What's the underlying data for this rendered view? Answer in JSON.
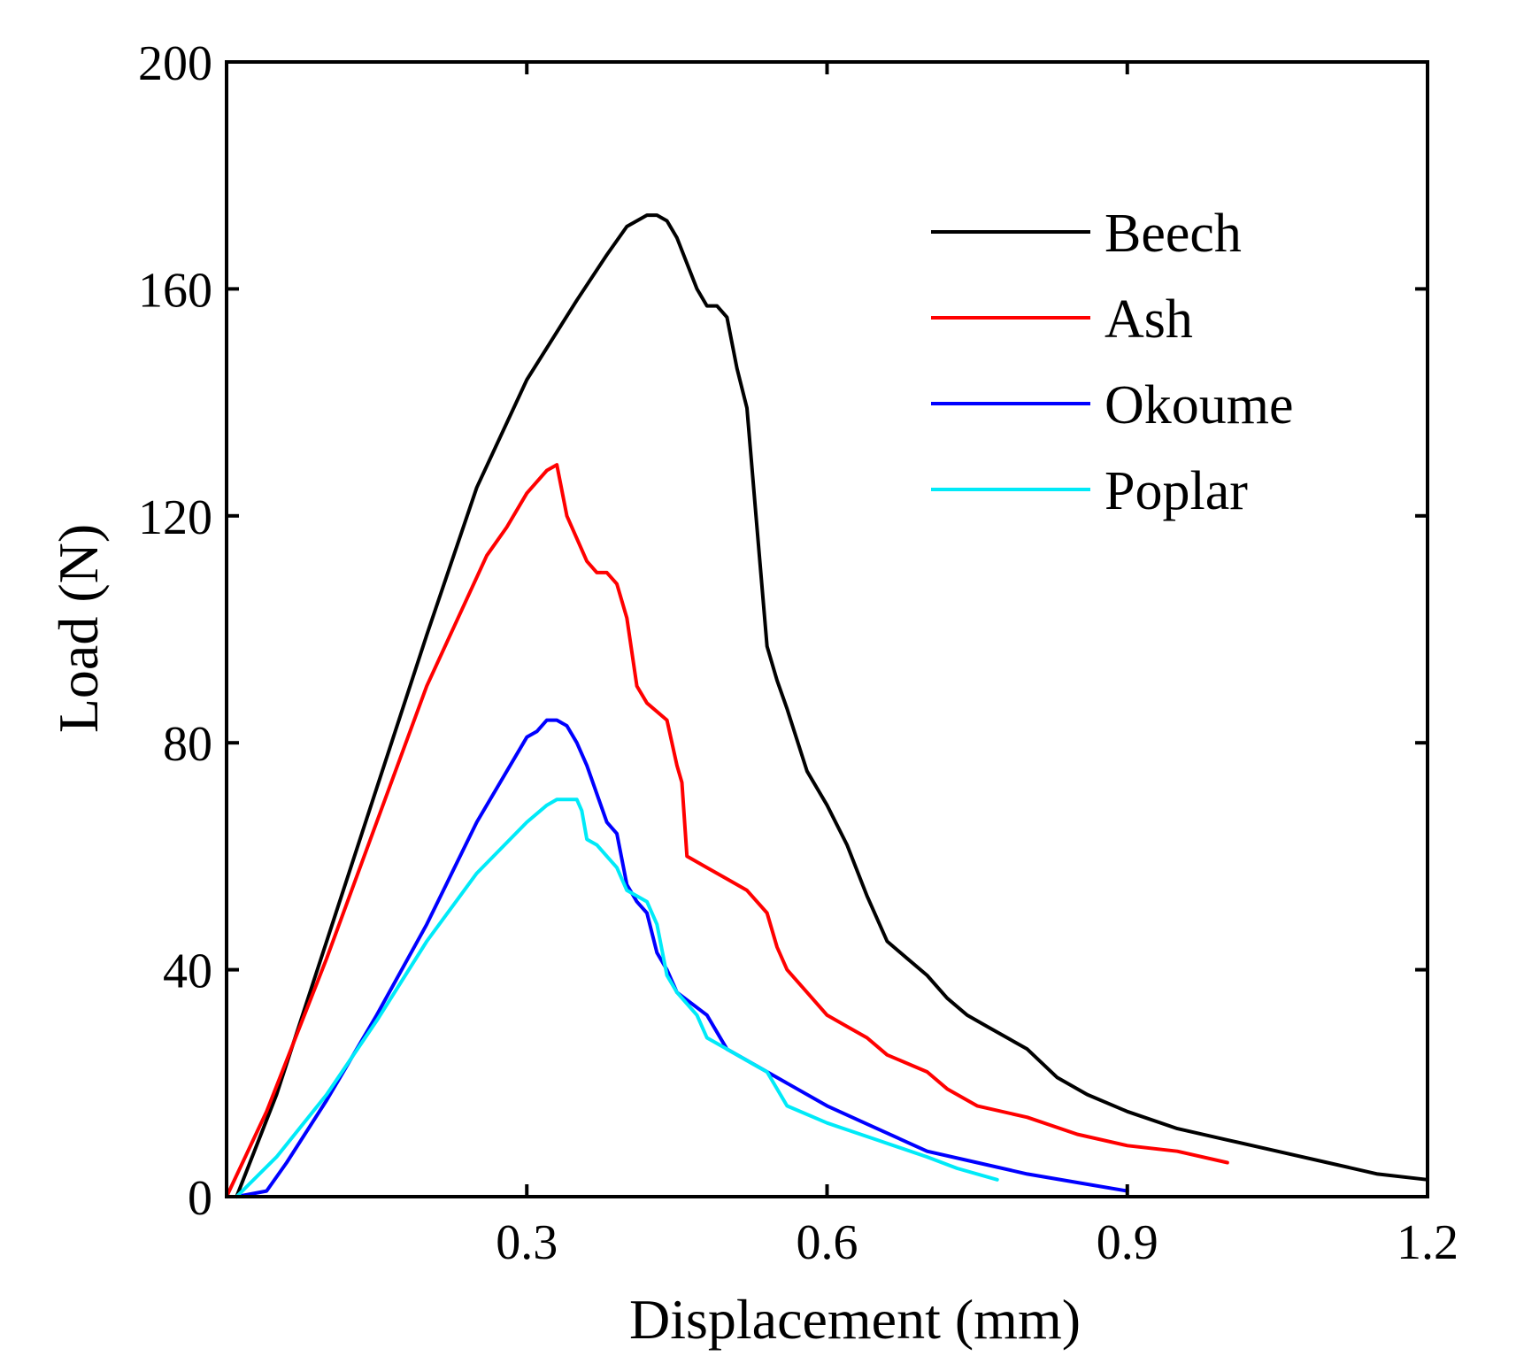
{
  "chart_data": {
    "type": "line",
    "title": "",
    "xlabel": "Displacement (mm)",
    "ylabel": "Load (N)",
    "xlim": [
      0,
      1.2
    ],
    "ylim": [
      0,
      200
    ],
    "xticks": [
      0.3,
      0.6,
      0.9,
      1.2
    ],
    "xtick_labels": [
      "0.3",
      "0.6",
      "0.9",
      "1.2"
    ],
    "yticks": [
      0,
      40,
      80,
      120,
      160,
      200
    ],
    "ytick_labels": [
      "0",
      "40",
      "80",
      "120",
      "160",
      "200"
    ],
    "grid": false,
    "legend_position": "top-right",
    "series": [
      {
        "name": "Beech",
        "color": "#000000",
        "x": [
          0.01,
          0.05,
          0.1,
          0.15,
          0.2,
          0.25,
          0.3,
          0.35,
          0.38,
          0.4,
          0.42,
          0.43,
          0.44,
          0.45,
          0.47,
          0.48,
          0.49,
          0.5,
          0.51,
          0.52,
          0.53,
          0.54,
          0.55,
          0.56,
          0.58,
          0.6,
          0.62,
          0.64,
          0.66,
          0.68,
          0.7,
          0.72,
          0.74,
          0.76,
          0.78,
          0.8,
          0.83,
          0.86,
          0.9,
          0.95,
          1.0,
          1.05,
          1.1,
          1.15,
          1.2
        ],
        "y": [
          0,
          18,
          45,
          72,
          99,
          125,
          144,
          158,
          166,
          171,
          173,
          173,
          172,
          169,
          160,
          157,
          157,
          155,
          146,
          139,
          118,
          97,
          91,
          86,
          75,
          69,
          62,
          53,
          45,
          42,
          39,
          35,
          32,
          30,
          28,
          26,
          21,
          18,
          15,
          12,
          10,
          8,
          6,
          4,
          3
        ]
      },
      {
        "name": "Ash",
        "color": "#ff0000",
        "x": [
          0,
          0.04,
          0.1,
          0.15,
          0.2,
          0.26,
          0.28,
          0.3,
          0.31,
          0.32,
          0.33,
          0.34,
          0.35,
          0.36,
          0.37,
          0.38,
          0.39,
          0.4,
          0.41,
          0.42,
          0.44,
          0.45,
          0.455,
          0.46,
          0.48,
          0.5,
          0.52,
          0.54,
          0.55,
          0.56,
          0.58,
          0.6,
          0.62,
          0.64,
          0.66,
          0.7,
          0.72,
          0.75,
          0.8,
          0.85,
          0.9,
          0.95,
          1.0
        ],
        "y": [
          0,
          15,
          42,
          66,
          90,
          113,
          118,
          124,
          126,
          128,
          129,
          120,
          116,
          112,
          110,
          110,
          108,
          102,
          90,
          87,
          84,
          76,
          73,
          60,
          58,
          56,
          54,
          50,
          44,
          40,
          36,
          32,
          30,
          28,
          25,
          22,
          19,
          16,
          14,
          11,
          9,
          8,
          6
        ]
      },
      {
        "name": "Okoume",
        "color": "#0000ff",
        "x": [
          0.01,
          0.04,
          0.06,
          0.1,
          0.15,
          0.2,
          0.25,
          0.3,
          0.31,
          0.32,
          0.33,
          0.34,
          0.35,
          0.36,
          0.37,
          0.38,
          0.39,
          0.4,
          0.41,
          0.42,
          0.43,
          0.44,
          0.45,
          0.48,
          0.5,
          0.55,
          0.6,
          0.65,
          0.7,
          0.75,
          0.8,
          0.85,
          0.9
        ],
        "y": [
          0,
          1,
          6,
          17,
          32,
          48,
          66,
          81,
          82,
          84,
          84,
          83,
          80,
          76,
          71,
          66,
          64,
          55,
          52,
          50,
          43,
          40,
          36,
          32,
          26,
          21,
          16,
          12,
          8,
          6,
          4,
          2.5,
          1
        ]
      },
      {
        "name": "Poplar",
        "color": "#00eaf8",
        "x": [
          0.01,
          0.05,
          0.1,
          0.15,
          0.2,
          0.25,
          0.3,
          0.32,
          0.33,
          0.34,
          0.35,
          0.355,
          0.36,
          0.37,
          0.38,
          0.39,
          0.4,
          0.42,
          0.43,
          0.44,
          0.45,
          0.47,
          0.48,
          0.5,
          0.53,
          0.54,
          0.56,
          0.6,
          0.65,
          0.7,
          0.73,
          0.77
        ],
        "y": [
          0,
          7,
          18,
          31,
          45,
          57,
          66,
          69,
          70,
          70,
          70,
          68,
          63,
          62,
          60,
          58,
          54,
          52,
          48,
          39,
          36,
          32,
          28,
          26,
          23,
          22,
          16,
          13,
          10,
          7,
          5,
          3
        ]
      }
    ]
  }
}
